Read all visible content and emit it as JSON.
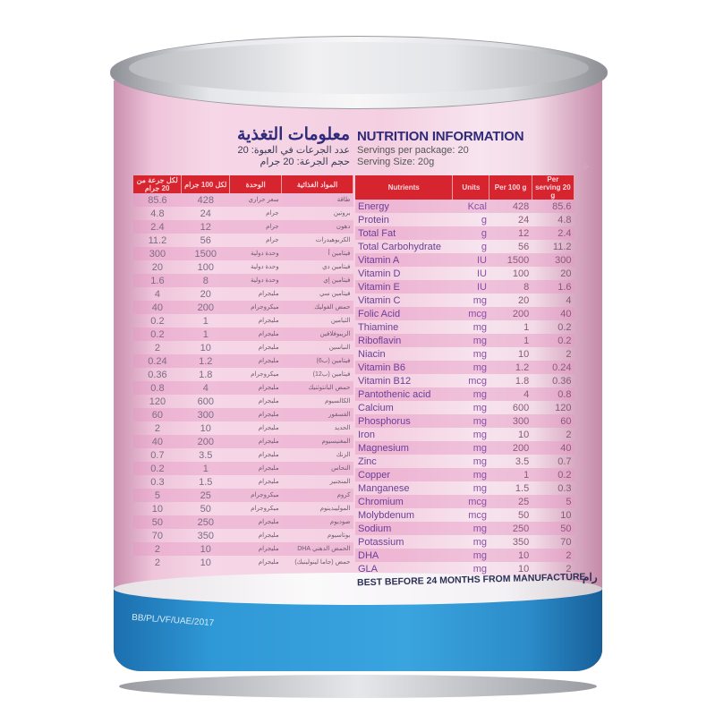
{
  "label": {
    "en_title": "NUTRITION INFORMATION",
    "servings_per_package": "Servings per package: 20",
    "serving_size": "Serving Size: 20g",
    "ar_title": "معلومات التغذية",
    "ar_servings": "عدد الجرعات في العبوة: 20",
    "ar_serving_size": "حجم الجرعة: 20 جرام",
    "best_before": "BEST BEFORE 24 MONTHS FROM MANUFACTURE",
    "ar_fragment": "رام",
    "code": "BB/PL/VF/UAE/2017"
  },
  "en_headers": [
    "Nutrients",
    "Units",
    "Per 100 g",
    "Per serving 20 g"
  ],
  "ar_headers": [
    "المواد الغذائية",
    "الوحدة",
    "لكل 100 جرام",
    "لكل جرعة من 20 جرام"
  ],
  "rows": [
    {
      "en": "Energy",
      "unit": "Kcal",
      "ar": "طاقة",
      "ar_unit": "سعر حراري",
      "p100": "428",
      "ps": "85.6"
    },
    {
      "en": "Protein",
      "unit": "g",
      "ar": "بروتين",
      "ar_unit": "جرام",
      "p100": "24",
      "ps": "4.8"
    },
    {
      "en": "Total Fat",
      "unit": "g",
      "ar": "دهون",
      "ar_unit": "جرام",
      "p100": "12",
      "ps": "2.4"
    },
    {
      "en": "Total Carbohydrate",
      "unit": "g",
      "ar": "الكربوهيدرات",
      "ar_unit": "جرام",
      "p100": "56",
      "ps": "11.2"
    },
    {
      "en": "Vitamin A",
      "unit": "IU",
      "ar": "فيتامين أ",
      "ar_unit": "وحدة دولية",
      "p100": "1500",
      "ps": "300"
    },
    {
      "en": "Vitamin D",
      "unit": "IU",
      "ar": "فيتامين دي",
      "ar_unit": "وحدة دولية",
      "p100": "100",
      "ps": "20"
    },
    {
      "en": "Vitamin E",
      "unit": "IU",
      "ar": "فيتامين إي",
      "ar_unit": "وحدة دولية",
      "p100": "8",
      "ps": "1.6"
    },
    {
      "en": "Vitamin C",
      "unit": "mg",
      "ar": "فيتامين سي",
      "ar_unit": "مليجرام",
      "p100": "20",
      "ps": "4"
    },
    {
      "en": "Folic Acid",
      "unit": "mcg",
      "ar": "حمض الفوليك",
      "ar_unit": "ميكروجرام",
      "p100": "200",
      "ps": "40"
    },
    {
      "en": "Thiamine",
      "unit": "mg",
      "ar": "الثيامين",
      "ar_unit": "مليجرام",
      "p100": "1",
      "ps": "0.2"
    },
    {
      "en": "Riboflavin",
      "unit": "mg",
      "ar": "الريبوفلافين",
      "ar_unit": "مليجرام",
      "p100": "1",
      "ps": "0.2"
    },
    {
      "en": "Niacin",
      "unit": "mg",
      "ar": "النياسين",
      "ar_unit": "مليجرام",
      "p100": "10",
      "ps": "2"
    },
    {
      "en": "Vitamin B6",
      "unit": "mg",
      "ar": "فيتامين (ب6)",
      "ar_unit": "مليجرام",
      "p100": "1.2",
      "ps": "0.24"
    },
    {
      "en": "Vitamin B12",
      "unit": "mcg",
      "ar": "فيتامين (ب12)",
      "ar_unit": "ميكروجرام",
      "p100": "1.8",
      "ps": "0.36"
    },
    {
      "en": "Pantothenic acid",
      "unit": "mg",
      "ar": "حمض البانتوثنيك",
      "ar_unit": "مليجرام",
      "p100": "4",
      "ps": "0.8"
    },
    {
      "en": "Calcium",
      "unit": "mg",
      "ar": "الكالسيوم",
      "ar_unit": "مليجرام",
      "p100": "600",
      "ps": "120"
    },
    {
      "en": "Phosphorus",
      "unit": "mg",
      "ar": "الفسفور",
      "ar_unit": "مليجرام",
      "p100": "300",
      "ps": "60"
    },
    {
      "en": "Iron",
      "unit": "mg",
      "ar": "الحديد",
      "ar_unit": "مليجرام",
      "p100": "10",
      "ps": "2"
    },
    {
      "en": "Magnesium",
      "unit": "mg",
      "ar": "المغنيسيوم",
      "ar_unit": "مليجرام",
      "p100": "200",
      "ps": "40"
    },
    {
      "en": "Zinc",
      "unit": "mg",
      "ar": "الزنك",
      "ar_unit": "مليجرام",
      "p100": "3.5",
      "ps": "0.7"
    },
    {
      "en": "Copper",
      "unit": "mg",
      "ar": "النحاس",
      "ar_unit": "مليجرام",
      "p100": "1",
      "ps": "0.2"
    },
    {
      "en": "Manganese",
      "unit": "mg",
      "ar": "المنجنيز",
      "ar_unit": "مليجرام",
      "p100": "1.5",
      "ps": "0.3"
    },
    {
      "en": "Chromium",
      "unit": "mcg",
      "ar": "كروم",
      "ar_unit": "ميكروجرام",
      "p100": "25",
      "ps": "5"
    },
    {
      "en": "Molybdenum",
      "unit": "mcg",
      "ar": "الموليبدينوم",
      "ar_unit": "ميكروجرام",
      "p100": "50",
      "ps": "10"
    },
    {
      "en": "Sodium",
      "unit": "mg",
      "ar": "صوديوم",
      "ar_unit": "مليجرام",
      "p100": "250",
      "ps": "50"
    },
    {
      "en": "Potassium",
      "unit": "mg",
      "ar": "بوتاسيوم",
      "ar_unit": "مليجرام",
      "p100": "350",
      "ps": "70"
    },
    {
      "en": "DHA",
      "unit": "mg",
      "ar": "الحمض الدهني DHA",
      "ar_unit": "مليجرام",
      "p100": "10",
      "ps": "2"
    },
    {
      "en": "GLA",
      "unit": "mg",
      "ar": "حمض (جاما لينولينيك)",
      "ar_unit": "مليجرام",
      "p100": "10",
      "ps": "2"
    }
  ],
  "colors": {
    "header_red": "#d7252f",
    "label_pink": "#f4cfe1",
    "band_blue": "#2f98d6",
    "title_navy": "#2f2a7a"
  }
}
